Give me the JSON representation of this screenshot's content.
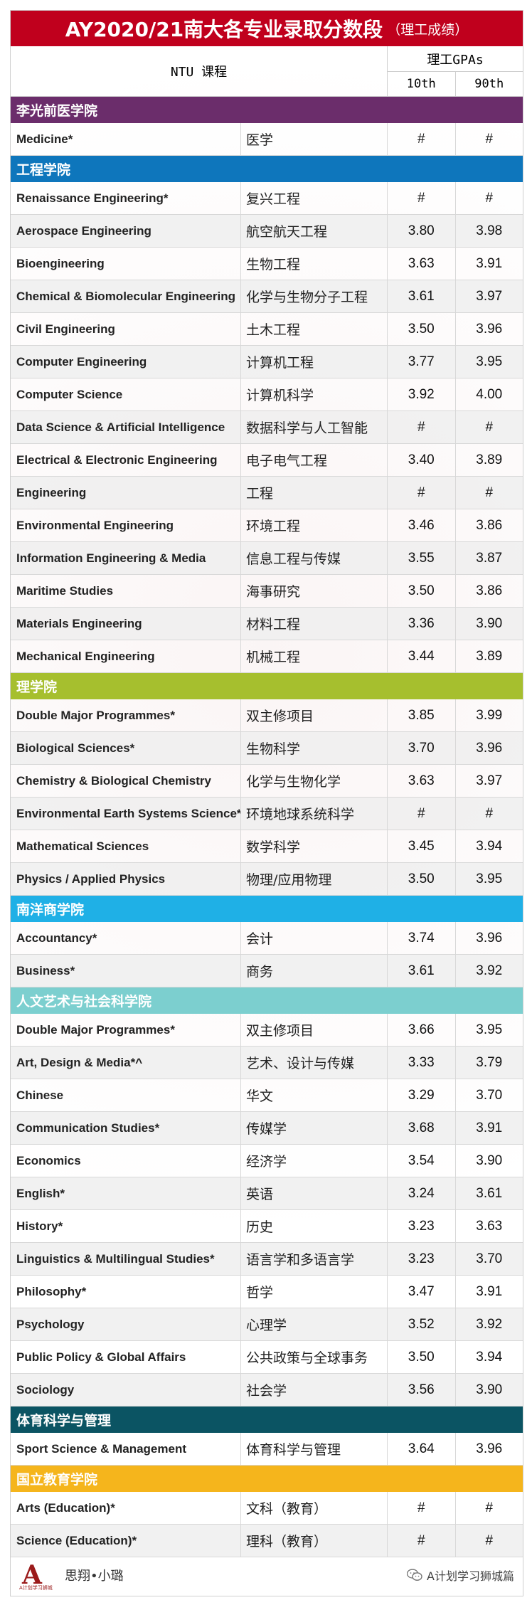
{
  "title": {
    "main": "AY2020/21南大各专业录取分数段",
    "sub": "（理工成绩）"
  },
  "header": {
    "course": "NTU 课程",
    "gpa": "理工GPAs",
    "p10": "10th",
    "p90": "90th"
  },
  "colors": {
    "title": "#c0001d"
  },
  "sections": [
    {
      "name": "李光前医学院",
      "color": "#6b2d6b",
      "rows": [
        {
          "en": "Medicine*",
          "zh": "医学",
          "p10": "#",
          "p90": "#"
        }
      ]
    },
    {
      "name": "工程学院",
      "color": "#0e76bc",
      "rows": [
        {
          "en": "Renaissance Engineering*",
          "zh": "复兴工程",
          "p10": "#",
          "p90": "#"
        },
        {
          "en": "Aerospace Engineering",
          "zh": "航空航天工程",
          "p10": "3.80",
          "p90": "3.98"
        },
        {
          "en": "Bioengineering",
          "zh": "生物工程",
          "p10": "3.63",
          "p90": "3.91"
        },
        {
          "en": "Chemical & Biomolecular Engineering",
          "zh": "化学与生物分子工程",
          "p10": "3.61",
          "p90": "3.97"
        },
        {
          "en": "Civil Engineering",
          "zh": "土木工程",
          "p10": "3.50",
          "p90": "3.96"
        },
        {
          "en": "Computer Engineering",
          "zh": "计算机工程",
          "p10": "3.77",
          "p90": "3.95"
        },
        {
          "en": "Computer Science",
          "zh": "计算机科学",
          "p10": "3.92",
          "p90": "4.00"
        },
        {
          "en": "Data Science & Artificial Intelligence",
          "zh": "数据科学与人工智能",
          "p10": "#",
          "p90": "#"
        },
        {
          "en": "Electrical & Electronic Engineering",
          "zh": "电子电气工程",
          "p10": "3.40",
          "p90": "3.89"
        },
        {
          "en": "Engineering",
          "zh": "工程",
          "p10": "#",
          "p90": "#"
        },
        {
          "en": "Environmental Engineering",
          "zh": "环境工程",
          "p10": "3.46",
          "p90": "3.86"
        },
        {
          "en": "Information Engineering & Media",
          "zh": "信息工程与传媒",
          "p10": "3.55",
          "p90": "3.87"
        },
        {
          "en": "Maritime Studies",
          "zh": "海事研究",
          "p10": "3.50",
          "p90": "3.86"
        },
        {
          "en": "Materials Engineering",
          "zh": "材料工程",
          "p10": "3.36",
          "p90": "3.90"
        },
        {
          "en": "Mechanical Engineering",
          "zh": "机械工程",
          "p10": "3.44",
          "p90": "3.89"
        }
      ]
    },
    {
      "name": "理学院",
      "color": "#a6bf2e",
      "rows": [
        {
          "en": "Double Major Programmes*",
          "zh": "双主修项目",
          "p10": "3.85",
          "p90": "3.99"
        },
        {
          "en": "Biological Sciences*",
          "zh": "生物科学",
          "p10": "3.70",
          "p90": "3.96"
        },
        {
          "en": "Chemistry & Biological Chemistry",
          "zh": "化学与生物化学",
          "p10": "3.63",
          "p90": "3.97"
        },
        {
          "en": "Environmental Earth Systems Science*",
          "zh": "环境地球系统科学",
          "p10": "#",
          "p90": "#"
        },
        {
          "en": "Mathematical Sciences",
          "zh": "数学科学",
          "p10": "3.45",
          "p90": "3.94"
        },
        {
          "en": "Physics / Applied Physics",
          "zh": "物理/应用物理",
          "p10": "3.50",
          "p90": "3.95"
        }
      ]
    },
    {
      "name": "南洋商学院",
      "color": "#1fb0e6",
      "rows": [
        {
          "en": "Accountancy*",
          "zh": "会计",
          "p10": "3.74",
          "p90": "3.96"
        },
        {
          "en": "Business*",
          "zh": "商务",
          "p10": "3.61",
          "p90": "3.92"
        }
      ]
    },
    {
      "name": "人文艺术与社会科学院",
      "color": "#7ccfcf",
      "rows": [
        {
          "en": "Double Major Programmes*",
          "zh": "双主修项目",
          "p10": "3.66",
          "p90": "3.95"
        },
        {
          "en": "Art, Design & Media*^",
          "zh": "艺术、设计与传媒",
          "p10": "3.33",
          "p90": "3.79"
        },
        {
          "en": "Chinese",
          "zh": "华文",
          "p10": "3.29",
          "p90": "3.70"
        },
        {
          "en": "Communication Studies*",
          "zh": "传媒学",
          "p10": "3.68",
          "p90": "3.91"
        },
        {
          "en": "Economics",
          "zh": "经济学",
          "p10": "3.54",
          "p90": "3.90"
        },
        {
          "en": "English*",
          "zh": "英语",
          "p10": "3.24",
          "p90": "3.61"
        },
        {
          "en": "History*",
          "zh": "历史",
          "p10": "3.23",
          "p90": "3.63"
        },
        {
          "en": "Linguistics & Multilingual Studies*",
          "zh": "语言学和多语言学",
          "p10": "3.23",
          "p90": "3.70"
        },
        {
          "en": "Philosophy*",
          "zh": "哲学",
          "p10": "3.47",
          "p90": "3.91"
        },
        {
          "en": "Psychology",
          "zh": "心理学",
          "p10": "3.52",
          "p90": "3.92"
        },
        {
          "en": "Public Policy & Global Affairs",
          "zh": "公共政策与全球事务",
          "p10": "3.50",
          "p90": "3.94"
        },
        {
          "en": "Sociology",
          "zh": "社会学",
          "p10": "3.56",
          "p90": "3.90"
        }
      ]
    },
    {
      "name": "体育科学与管理",
      "color": "#0b5463",
      "rows": [
        {
          "en": "Sport Science & Management",
          "zh": "体育科学与管理",
          "p10": "3.64",
          "p90": "3.96"
        }
      ]
    },
    {
      "name": "国立教育学院",
      "color": "#f5b51c",
      "rows": [
        {
          "en": "Arts (Education)*",
          "zh": "文科（教育）",
          "p10": "#",
          "p90": "#"
        },
        {
          "en": "Science (Education)*",
          "zh": "理科（教育）",
          "p10": "#",
          "p90": "#"
        }
      ]
    }
  ],
  "footer": {
    "brand": "思翔•小璐",
    "wechat": "A计划学习狮城篇"
  }
}
